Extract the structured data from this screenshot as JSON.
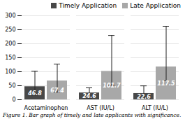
{
  "chart_data": {
    "type": "bar",
    "caption": "Figure 1. Bar graph of timely and late applicants with significance.",
    "categories": [
      "Acetaminophen",
      "AST (IU/L)",
      "ALT (IU/L)"
    ],
    "series": [
      {
        "name": "Timely Application",
        "color": "#484848",
        "values": [
          46.8,
          24.6,
          22.6
        ],
        "err_up": [
          55,
          18,
          27
        ],
        "err_down": [
          30,
          18,
          15
        ]
      },
      {
        "name": "Late Application",
        "color": "#a8a8a8",
        "values": [
          67.4,
          101.7,
          117.5
        ],
        "err_up": [
          60,
          128,
          145
        ],
        "err_down": [
          40,
          50,
          50
        ]
      }
    ],
    "ylim": [
      0,
      300
    ],
    "yticks": [
      0,
      50,
      100,
      150,
      200,
      250,
      300
    ],
    "grid": true,
    "legend": "upper right",
    "data_labels": true
  }
}
